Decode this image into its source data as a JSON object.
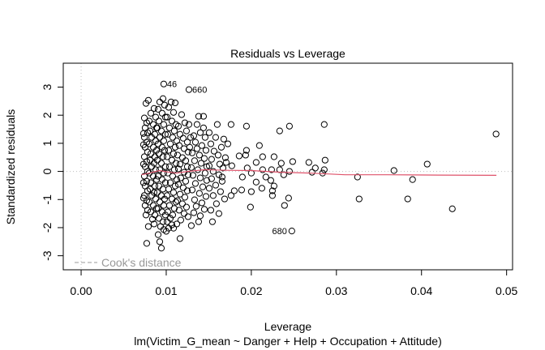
{
  "chart_data": {
    "type": "scatter",
    "title": "Residuals vs Leverage",
    "xlabel": "Leverage",
    "ylabel": "Standardized residuals",
    "subtitle": "lm(Victim_G_mean ~ Danger + Help + Occupation + Attitude)",
    "xlim": [
      -0.0021,
      0.0507
    ],
    "ylim": [
      -3.5,
      3.85
    ],
    "x_ticks": [
      {
        "value": 0.0,
        "label": "0.00"
      },
      {
        "value": 0.01,
        "label": "0.01"
      },
      {
        "value": 0.02,
        "label": "0.02"
      },
      {
        "value": 0.03,
        "label": "0.03"
      },
      {
        "value": 0.04,
        "label": "0.04"
      },
      {
        "value": 0.05,
        "label": "0.05"
      }
    ],
    "y_ticks": [
      {
        "value": 3,
        "label": "3"
      },
      {
        "value": 2,
        "label": "2"
      },
      {
        "value": 1,
        "label": "1"
      },
      {
        "value": 0,
        "label": "0"
      },
      {
        "value": -1,
        "label": "-1"
      },
      {
        "value": -2,
        "label": "-2"
      },
      {
        "value": -3,
        "label": "-3"
      }
    ],
    "reference_lines": {
      "h": 0,
      "v": 0,
      "style": "dotted",
      "color": "#bebebe"
    },
    "legend": {
      "label": "Cook's distance",
      "placement": "bottom-left",
      "color": "#999999",
      "style": "dashed"
    },
    "smooth_line": {
      "color": "#df536b",
      "points": [
        [
          0.0071,
          -0.12
        ],
        [
          0.008,
          -0.06
        ],
        [
          0.0092,
          0.03
        ],
        [
          0.0102,
          -0.02
        ],
        [
          0.0112,
          -0.06
        ],
        [
          0.0125,
          0.0
        ],
        [
          0.0145,
          0.06
        ],
        [
          0.017,
          0.04
        ],
        [
          0.02,
          0.03
        ],
        [
          0.0235,
          -0.03
        ],
        [
          0.027,
          -0.06
        ],
        [
          0.031,
          -0.12
        ],
        [
          0.036,
          -0.12
        ],
        [
          0.042,
          -0.13
        ],
        [
          0.0488,
          -0.14
        ]
      ]
    },
    "labeled_points": [
      {
        "label": "46",
        "x": 0.00971,
        "y": 3.11
      },
      {
        "label": "660",
        "x": 0.01267,
        "y": 2.91
      },
      {
        "label": "680",
        "x": 0.02476,
        "y": -2.12
      }
    ],
    "points": [
      [
        0.04876,
        1.33
      ],
      [
        0.04067,
        0.26
      ],
      [
        0.03676,
        0.03
      ],
      [
        0.03895,
        -0.29
      ],
      [
        0.03248,
        -0.2
      ],
      [
        0.03267,
        -0.98
      ],
      [
        0.03838,
        -0.98
      ],
      [
        0.04362,
        -1.33
      ],
      [
        0.02857,
        1.67
      ],
      [
        0.02448,
        1.61
      ],
      [
        0.02333,
        1.44
      ],
      [
        0.02267,
        0.52
      ],
      [
        0.02352,
        0.29
      ],
      [
        0.02486,
        0.35
      ],
      [
        0.02676,
        0.32
      ],
      [
        0.02867,
        0.4
      ],
      [
        0.02752,
        0.12
      ],
      [
        0.02857,
        0.06
      ],
      [
        0.02238,
        0.06
      ],
      [
        0.02333,
        0.06
      ],
      [
        0.02381,
        -0.12
      ],
      [
        0.02448,
        0.0
      ],
      [
        0.02714,
        -0.03
      ],
      [
        0.02838,
        -0.06
      ],
      [
        0.02229,
        -0.32
      ],
      [
        0.02267,
        -0.52
      ],
      [
        0.02248,
        -0.69
      ],
      [
        0.02248,
        -0.86
      ],
      [
        0.02438,
        -0.95
      ],
      [
        0.0239,
        -1.21
      ],
      [
        0.01943,
        1.61
      ],
      [
        0.01943,
        0.75
      ],
      [
        0.01762,
        1.67
      ],
      [
        0.01724,
        0.98
      ],
      [
        0.01857,
        0.55
      ],
      [
        0.01933,
        0.58
      ],
      [
        0.02095,
        0.92
      ],
      [
        0.02133,
        0.52
      ],
      [
        0.02057,
        0.32
      ],
      [
        0.01952,
        0.12
      ],
      [
        0.02133,
        0.06
      ],
      [
        0.02,
        -0.06
      ],
      [
        0.02057,
        -0.38
      ],
      [
        0.02124,
        -0.6
      ],
      [
        0.02,
        -0.72
      ],
      [
        0.01886,
        -0.66
      ],
      [
        0.018,
        -0.69
      ],
      [
        0.01762,
        -0.86
      ],
      [
        0.0199,
        -1.27
      ],
      [
        0.01895,
        -0.2
      ],
      [
        0.01771,
        0.2
      ],
      [
        0.02171,
        -0.2
      ],
      [
        0.016,
        1.67
      ],
      [
        0.01505,
        1.38
      ],
      [
        0.01581,
        1.21
      ],
      [
        0.01676,
        1.15
      ],
      [
        0.01524,
        0.98
      ],
      [
        0.01648,
        0.86
      ],
      [
        0.01562,
        0.72
      ],
      [
        0.0161,
        0.58
      ],
      [
        0.01695,
        0.49
      ],
      [
        0.01533,
        0.43
      ],
      [
        0.01629,
        0.26
      ],
      [
        0.01505,
        0.2
      ],
      [
        0.01667,
        0.12
      ],
      [
        0.01552,
        0.0
      ],
      [
        0.01619,
        -0.12
      ],
      [
        0.01533,
        -0.26
      ],
      [
        0.01657,
        -0.35
      ],
      [
        0.01581,
        -0.49
      ],
      [
        0.01505,
        -0.6
      ],
      [
        0.01638,
        -0.72
      ],
      [
        0.01552,
        -0.86
      ],
      [
        0.01686,
        -0.98
      ],
      [
        0.0159,
        -1.15
      ],
      [
        0.01524,
        -1.38
      ],
      [
        0.01619,
        -1.5
      ],
      [
        0.01543,
        -1.79
      ],
      [
        0.01657,
        -0.2
      ],
      [
        0.01705,
        0.32
      ],
      [
        0.01438,
        1.96
      ],
      [
        0.01381,
        1.96
      ],
      [
        0.01362,
        1.67
      ],
      [
        0.01438,
        1.55
      ],
      [
        0.014,
        1.38
      ],
      [
        0.01324,
        1.27
      ],
      [
        0.01457,
        1.21
      ],
      [
        0.01343,
        1.04
      ],
      [
        0.01419,
        0.92
      ],
      [
        0.01362,
        0.81
      ],
      [
        0.01467,
        0.75
      ],
      [
        0.01305,
        0.66
      ],
      [
        0.0139,
        0.58
      ],
      [
        0.01448,
        0.46
      ],
      [
        0.01333,
        0.38
      ],
      [
        0.0141,
        0.29
      ],
      [
        0.01476,
        0.17
      ],
      [
        0.01295,
        0.14
      ],
      [
        0.01371,
        0.06
      ],
      [
        0.01457,
        -0.06
      ],
      [
        0.01314,
        -0.14
      ],
      [
        0.014,
        -0.23
      ],
      [
        0.01476,
        -0.32
      ],
      [
        0.01343,
        -0.43
      ],
      [
        0.01429,
        -0.55
      ],
      [
        0.01305,
        -0.66
      ],
      [
        0.0139,
        -0.78
      ],
      [
        0.01467,
        -0.89
      ],
      [
        0.01333,
        -1.01
      ],
      [
        0.01419,
        -1.12
      ],
      [
        0.01352,
        -1.24
      ],
      [
        0.01448,
        -1.35
      ],
      [
        0.01324,
        -1.47
      ],
      [
        0.014,
        -1.58
      ],
      [
        0.01381,
        -1.79
      ],
      [
        0.01295,
        -1.93
      ],
      [
        0.01267,
        1.67
      ],
      [
        0.01286,
        1.21
      ],
      [
        0.01276,
        0.86
      ],
      [
        0.01181,
        2.02
      ],
      [
        0.01219,
        1.73
      ],
      [
        0.01143,
        1.61
      ],
      [
        0.01238,
        1.44
      ],
      [
        0.01162,
        1.32
      ],
      [
        0.012,
        1.18
      ],
      [
        0.01248,
        1.04
      ],
      [
        0.01152,
        0.92
      ],
      [
        0.0121,
        0.81
      ],
      [
        0.01257,
        0.69
      ],
      [
        0.01133,
        0.58
      ],
      [
        0.0119,
        0.49
      ],
      [
        0.01229,
        0.38
      ],
      [
        0.01162,
        0.26
      ],
      [
        0.01248,
        0.17
      ],
      [
        0.01143,
        0.09
      ],
      [
        0.0121,
        -0.03
      ],
      [
        0.01257,
        -0.12
      ],
      [
        0.01171,
        -0.23
      ],
      [
        0.01229,
        -0.35
      ],
      [
        0.01143,
        -0.46
      ],
      [
        0.012,
        -0.58
      ],
      [
        0.01248,
        -0.69
      ],
      [
        0.01162,
        -0.81
      ],
      [
        0.01219,
        -0.92
      ],
      [
        0.01133,
        -1.04
      ],
      [
        0.0119,
        -1.15
      ],
      [
        0.01238,
        -1.27
      ],
      [
        0.01152,
        -1.38
      ],
      [
        0.0121,
        -1.5
      ],
      [
        0.01257,
        -1.61
      ],
      [
        0.01171,
        -1.73
      ],
      [
        0.01124,
        -1.87
      ],
      [
        0.01162,
        -2.39
      ],
      [
        0.01086,
        -2.02
      ],
      [
        0.01057,
        2.47
      ],
      [
        0.01105,
        2.44
      ],
      [
        0.01029,
        2.28
      ],
      [
        0.01086,
        2.1
      ],
      [
        0.0101,
        1.93
      ],
      [
        0.01067,
        1.79
      ],
      [
        0.01114,
        1.67
      ],
      [
        0.01038,
        1.55
      ],
      [
        0.01095,
        1.44
      ],
      [
        0.01019,
        1.32
      ],
      [
        0.01076,
        1.21
      ],
      [
        0.01124,
        1.09
      ],
      [
        0.01048,
        0.98
      ],
      [
        0.01105,
        0.86
      ],
      [
        0.01029,
        0.75
      ],
      [
        0.01086,
        0.63
      ],
      [
        0.0101,
        0.52
      ],
      [
        0.01067,
        0.4
      ],
      [
        0.01114,
        0.29
      ],
      [
        0.01038,
        0.17
      ],
      [
        0.01095,
        0.06
      ],
      [
        0.01019,
        -0.06
      ],
      [
        0.01076,
        -0.17
      ],
      [
        0.01124,
        -0.29
      ],
      [
        0.01048,
        -0.4
      ],
      [
        0.01105,
        -0.52
      ],
      [
        0.01029,
        -0.63
      ],
      [
        0.01086,
        -0.75
      ],
      [
        0.0101,
        -0.86
      ],
      [
        0.01067,
        -0.98
      ],
      [
        0.01114,
        -1.09
      ],
      [
        0.01038,
        -1.21
      ],
      [
        0.01095,
        -1.32
      ],
      [
        0.01019,
        -1.44
      ],
      [
        0.01076,
        -1.55
      ],
      [
        0.01048,
        -1.67
      ],
      [
        0.0101,
        -1.79
      ],
      [
        0.01067,
        -1.9
      ],
      [
        0.01029,
        -2.02
      ],
      [
        0.01,
        -2.13
      ],
      [
        0.00962,
        2.59
      ],
      [
        0.00924,
        2.47
      ],
      [
        0.00981,
        2.36
      ],
      [
        0.00905,
        2.21
      ],
      [
        0.00952,
        2.07
      ],
      [
        0.0099,
        1.93
      ],
      [
        0.00914,
        1.79
      ],
      [
        0.00971,
        1.67
      ],
      [
        0.00895,
        1.55
      ],
      [
        0.00943,
        1.44
      ],
      [
        0.0099,
        1.32
      ],
      [
        0.00924,
        1.21
      ],
      [
        0.00971,
        1.09
      ],
      [
        0.00905,
        0.98
      ],
      [
        0.00952,
        0.86
      ],
      [
        0.00981,
        0.75
      ],
      [
        0.00914,
        0.63
      ],
      [
        0.00962,
        0.52
      ],
      [
        0.00895,
        0.4
      ],
      [
        0.00943,
        0.29
      ],
      [
        0.0099,
        0.17
      ],
      [
        0.00924,
        0.06
      ],
      [
        0.00971,
        -0.06
      ],
      [
        0.00905,
        -0.17
      ],
      [
        0.00952,
        -0.29
      ],
      [
        0.0099,
        -0.4
      ],
      [
        0.00914,
        -0.52
      ],
      [
        0.00962,
        -0.63
      ],
      [
        0.00895,
        -0.75
      ],
      [
        0.00943,
        -0.86
      ],
      [
        0.00981,
        -0.98
      ],
      [
        0.00924,
        -1.09
      ],
      [
        0.00971,
        -1.21
      ],
      [
        0.00905,
        -1.32
      ],
      [
        0.00952,
        -1.44
      ],
      [
        0.0099,
        -1.55
      ],
      [
        0.00914,
        -1.67
      ],
      [
        0.00962,
        -1.79
      ],
      [
        0.00933,
        -1.96
      ],
      [
        0.00971,
        -2.07
      ],
      [
        0.00905,
        -2.25
      ],
      [
        0.00943,
        -2.73
      ],
      [
        0.00924,
        -2.5
      ],
      [
        0.00857,
        2.24
      ],
      [
        0.00819,
        2.07
      ],
      [
        0.00876,
        1.93
      ],
      [
        0.008,
        1.79
      ],
      [
        0.00848,
        1.67
      ],
      [
        0.00886,
        1.55
      ],
      [
        0.0081,
        1.44
      ],
      [
        0.00867,
        1.32
      ],
      [
        0.00829,
        1.21
      ],
      [
        0.00876,
        1.09
      ],
      [
        0.008,
        0.98
      ],
      [
        0.00848,
        0.86
      ],
      [
        0.00886,
        0.75
      ],
      [
        0.00819,
        0.63
      ],
      [
        0.00867,
        0.52
      ],
      [
        0.0081,
        0.4
      ],
      [
        0.00857,
        0.29
      ],
      [
        0.00829,
        0.17
      ],
      [
        0.00876,
        0.06
      ],
      [
        0.008,
        -0.06
      ],
      [
        0.00848,
        -0.17
      ],
      [
        0.00886,
        -0.29
      ],
      [
        0.00819,
        -0.4
      ],
      [
        0.00867,
        -0.52
      ],
      [
        0.0081,
        -0.63
      ],
      [
        0.00857,
        -0.75
      ],
      [
        0.00829,
        -0.86
      ],
      [
        0.00876,
        -0.98
      ],
      [
        0.008,
        -1.09
      ],
      [
        0.00848,
        -1.21
      ],
      [
        0.00886,
        -1.32
      ],
      [
        0.00819,
        -1.44
      ],
      [
        0.00867,
        -1.55
      ],
      [
        0.00838,
        -1.7
      ],
      [
        0.00857,
        -1.87
      ],
      [
        0.0079,
        -1.96
      ],
      [
        0.00762,
        2.42
      ],
      [
        0.0079,
        2.53
      ],
      [
        0.00743,
        1.9
      ],
      [
        0.00771,
        1.73
      ],
      [
        0.00752,
        1.55
      ],
      [
        0.00781,
        1.38
      ],
      [
        0.00743,
        1.21
      ],
      [
        0.00771,
        1.04
      ],
      [
        0.00752,
        0.86
      ],
      [
        0.00781,
        0.69
      ],
      [
        0.00743,
        0.52
      ],
      [
        0.00771,
        0.35
      ],
      [
        0.00752,
        0.17
      ],
      [
        0.00781,
        0.0
      ],
      [
        0.00743,
        -0.17
      ],
      [
        0.00771,
        -0.35
      ],
      [
        0.00752,
        -0.52
      ],
      [
        0.00781,
        -0.69
      ],
      [
        0.00743,
        -0.86
      ],
      [
        0.00771,
        -1.04
      ],
      [
        0.00752,
        -1.21
      ],
      [
        0.00781,
        -1.38
      ],
      [
        0.00762,
        -1.55
      ],
      [
        0.00771,
        -2.56
      ],
      [
        0.00733,
        0.95
      ],
      [
        0.00733,
        -0.95
      ],
      [
        0.00733,
        1.35
      ],
      [
        0.00733,
        -0.4
      ],
      [
        0.00733,
        0.26
      ]
    ]
  }
}
